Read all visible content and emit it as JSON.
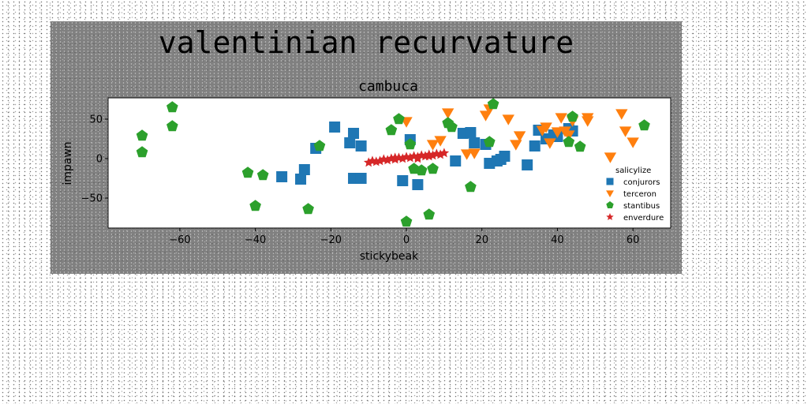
{
  "chart_data": {
    "type": "scatter",
    "suptitle": "valentinian recurvature",
    "title": "cambuca",
    "xlabel": "stickybeak",
    "ylabel": "impawn",
    "xlim": [
      -79,
      70
    ],
    "ylim": [
      -88,
      77
    ],
    "xticks": [
      -60,
      -40,
      -20,
      0,
      20,
      40,
      60
    ],
    "yticks": [
      -50,
      0,
      50
    ],
    "grid": false,
    "legend": {
      "title": "salicylize",
      "placement": "lower-right"
    },
    "series": [
      {
        "name": "conjurors",
        "marker": "square",
        "color": "#1f77b4",
        "points": [
          [
            -33,
            -23
          ],
          [
            -28,
            -26
          ],
          [
            -27,
            -14
          ],
          [
            -24,
            13
          ],
          [
            -19,
            40
          ],
          [
            -15,
            20
          ],
          [
            -14,
            32
          ],
          [
            -12,
            16
          ],
          [
            -14,
            -25
          ],
          [
            -12,
            -25
          ],
          [
            -1,
            -28
          ],
          [
            1,
            24
          ],
          [
            3,
            -33
          ],
          [
            13,
            -3
          ],
          [
            15,
            32
          ],
          [
            17,
            33
          ],
          [
            18,
            20
          ],
          [
            21,
            18
          ],
          [
            22,
            -6
          ],
          [
            24,
            -3
          ],
          [
            25,
            -1
          ],
          [
            26,
            3
          ],
          [
            32,
            -8
          ],
          [
            34,
            16
          ],
          [
            35,
            36
          ],
          [
            37,
            25
          ],
          [
            39,
            30
          ],
          [
            40,
            28
          ],
          [
            43,
            38
          ],
          [
            44,
            35
          ]
        ]
      },
      {
        "name": "terceron",
        "marker": "triangle-down",
        "color": "#ff7f0e",
        "points": [
          [
            0,
            47
          ],
          [
            7,
            18
          ],
          [
            9,
            23
          ],
          [
            11,
            58
          ],
          [
            16,
            6
          ],
          [
            18,
            7
          ],
          [
            21,
            55
          ],
          [
            22,
            63
          ],
          [
            27,
            50
          ],
          [
            29,
            18
          ],
          [
            30,
            29
          ],
          [
            36,
            36
          ],
          [
            37,
            40
          ],
          [
            38,
            20
          ],
          [
            40,
            34
          ],
          [
            41,
            52
          ],
          [
            42,
            35
          ],
          [
            43,
            30
          ],
          [
            44,
            48
          ],
          [
            48,
            52
          ],
          [
            48,
            48
          ],
          [
            54,
            2
          ],
          [
            57,
            57
          ],
          [
            58,
            35
          ],
          [
            60,
            21
          ]
        ]
      },
      {
        "name": "stantibus",
        "marker": "pentagon",
        "color": "#2ca02c",
        "points": [
          [
            -70,
            29
          ],
          [
            -70,
            8
          ],
          [
            -62,
            65
          ],
          [
            -62,
            41
          ],
          [
            -42,
            -18
          ],
          [
            -38,
            -21
          ],
          [
            -40,
            -60
          ],
          [
            -26,
            -64
          ],
          [
            -23,
            16
          ],
          [
            -4,
            36
          ],
          [
            -2,
            50
          ],
          [
            0,
            -80
          ],
          [
            1,
            18
          ],
          [
            2,
            -13
          ],
          [
            4,
            -15
          ],
          [
            6,
            -71
          ],
          [
            7,
            -13
          ],
          [
            11,
            45
          ],
          [
            12,
            40
          ],
          [
            17,
            -36
          ],
          [
            22,
            21
          ],
          [
            23,
            69
          ],
          [
            43,
            21
          ],
          [
            44,
            53
          ],
          [
            46,
            15
          ],
          [
            63,
            42
          ]
        ]
      },
      {
        "name": "enverdure",
        "marker": "star",
        "color": "#d62728",
        "points": [
          [
            -10,
            -5
          ],
          [
            -8,
            -4
          ],
          [
            -7,
            -3
          ],
          [
            -6,
            -1
          ],
          [
            -5,
            -2
          ],
          [
            -4,
            0
          ],
          [
            -3,
            -1
          ],
          [
            -2,
            1
          ],
          [
            -1,
            0
          ],
          [
            0,
            2
          ],
          [
            1,
            1
          ],
          [
            2,
            3
          ],
          [
            3,
            2
          ],
          [
            4,
            4
          ],
          [
            5,
            3
          ],
          [
            6,
            5
          ],
          [
            7,
            4
          ],
          [
            8,
            6
          ],
          [
            9,
            5
          ],
          [
            10,
            7
          ],
          [
            -9,
            -3
          ],
          [
            -3,
            1
          ],
          [
            3,
            0
          ],
          [
            6,
            3
          ]
        ]
      }
    ]
  }
}
